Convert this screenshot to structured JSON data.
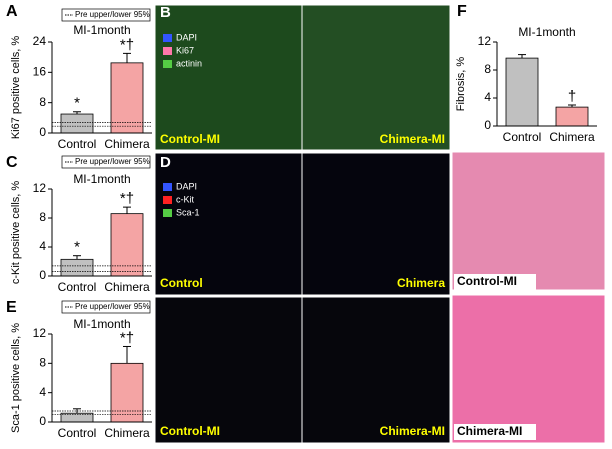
{
  "chart_data": [
    {
      "type": "bar",
      "panel": "A",
      "title": "MI-1month",
      "ylabel": "Ki67 positive cells, %",
      "reference_label": "Pre upper/lower 95%",
      "reference_lines": [
        1.8,
        2.8
      ],
      "categories": [
        "Control",
        "Chimera"
      ],
      "values": [
        5,
        18.5
      ],
      "errors": [
        0.6,
        2.5
      ],
      "markers": [
        "*",
        "*†"
      ],
      "colors": [
        "#c0c0c0",
        "#f4a4a4"
      ],
      "ylim": [
        0,
        24
      ],
      "yticks": [
        0,
        8,
        16,
        24
      ]
    },
    {
      "type": "bar",
      "panel": "C",
      "title": "MI-1month",
      "ylabel": "c-Kit positive cells, %",
      "reference_label": "Pre upper/lower 95%",
      "reference_lines": [
        0.6,
        1.4
      ],
      "categories": [
        "Control",
        "Chimera"
      ],
      "values": [
        2.3,
        8.6
      ],
      "errors": [
        0.5,
        0.9
      ],
      "markers": [
        "*",
        "*†"
      ],
      "colors": [
        "#c0c0c0",
        "#f4a4a4"
      ],
      "ylim": [
        0,
        12
      ],
      "yticks": [
        0,
        4,
        8,
        12
      ]
    },
    {
      "type": "bar",
      "panel": "E",
      "title": "MI-1month",
      "ylabel": "Sca-1 positive cells, %",
      "reference_label": "Pre upper/lower 95%",
      "reference_lines": [
        1.0,
        1.5
      ],
      "categories": [
        "Control",
        "Chimera"
      ],
      "values": [
        1.2,
        8
      ],
      "errors": [
        0.6,
        2.3
      ],
      "markers": [
        null,
        "*†"
      ],
      "colors": [
        "#c0c0c0",
        "#f4a4a4"
      ],
      "ylim": [
        0,
        12
      ],
      "yticks": [
        0,
        4,
        8,
        12
      ]
    },
    {
      "type": "bar",
      "panel": "F",
      "title": "MI-1month",
      "ylabel": "Fibrosis, %",
      "categories": [
        "Control",
        "Chimera"
      ],
      "values": [
        9.7,
        2.7
      ],
      "errors": [
        0.5,
        0.3
      ],
      "markers": [
        null,
        "†"
      ],
      "colors": [
        "#c0c0c0",
        "#f4a4a4"
      ],
      "ylim": [
        0,
        12
      ],
      "yticks": [
        0,
        4,
        8,
        12
      ]
    }
  ],
  "images": [
    {
      "panel": "B",
      "legend": [
        {
          "name": "DAPI",
          "color": "#3355ff"
        },
        {
          "name": "Ki67",
          "color": "#ff77aa"
        },
        {
          "name": "actinin",
          "color": "#55cc44"
        }
      ],
      "labels": [
        "Control-MI",
        "Chimera-MI"
      ]
    },
    {
      "panel": "D",
      "legend": [
        {
          "name": "DAPI",
          "color": "#3355ff"
        },
        {
          "name": "c-Kit",
          "color": "#ff2222"
        },
        {
          "name": "Sca-1",
          "color": "#55cc44"
        }
      ],
      "labels": [
        "Control",
        "Chimera",
        "Control-MI",
        "Chimera-MI"
      ]
    },
    {
      "labels": [
        "Control-MI",
        "Chimera-MI"
      ]
    }
  ]
}
